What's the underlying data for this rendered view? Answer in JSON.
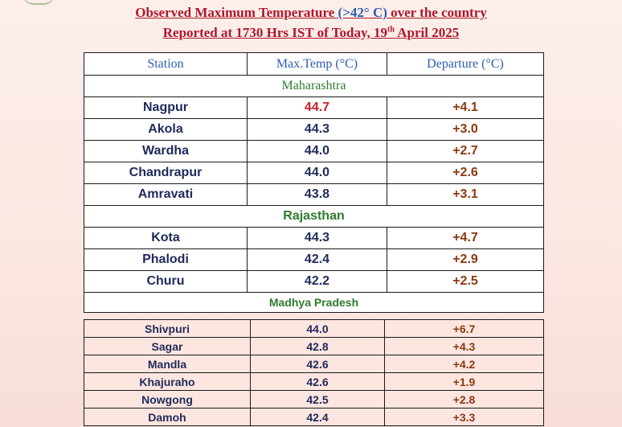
{
  "title_line1": {
    "pre": "Observed Maximum Temperature ",
    "blue": "(>42° C)",
    "post": " over the country"
  },
  "title_line2": {
    "pre": "Reported at 1730 Hrs IST of Today, 19",
    "sup": "th",
    "post": " April 2025"
  },
  "headers": {
    "station": "Station",
    "max_temp": "Max.Temp (°C)",
    "departure": "Departure (°C)"
  },
  "maharashtra": {
    "name": "Maharashtra",
    "rows": [
      {
        "station": "Nagpur",
        "max": "44.7",
        "dep": "+4.1"
      },
      {
        "station": "Akola",
        "max": "44.3",
        "dep": "+3.0"
      },
      {
        "station": "Wardha",
        "max": "44.0",
        "dep": "+2.7"
      },
      {
        "station": "Chandrapur",
        "max": "44.0",
        "dep": "+2.6"
      },
      {
        "station": "Amravati",
        "max": "43.8",
        "dep": "+3.1"
      }
    ]
  },
  "rajasthan": {
    "name": "Rajasthan",
    "rows": [
      {
        "station": "Kota",
        "max": "44.3",
        "dep": "+4.7"
      },
      {
        "station": "Phalodi",
        "max": "42.4",
        "dep": "+2.9"
      },
      {
        "station": "Churu",
        "max": "42.2",
        "dep": "+2.5"
      }
    ]
  },
  "madhya_pradesh": {
    "name": "Madhya Pradesh",
    "rows": [
      {
        "station": "Shivpuri",
        "max": "44.0",
        "dep": "+6.7"
      },
      {
        "station": "Sagar",
        "max": "42.8",
        "dep": "+4.3"
      },
      {
        "station": "Mandla",
        "max": "42.6",
        "dep": "+4.2"
      },
      {
        "station": "Khajuraho",
        "max": "42.6",
        "dep": "+1.9"
      },
      {
        "station": "Nowgong",
        "max": "42.5",
        "dep": "+2.8"
      },
      {
        "station": "Damoh",
        "max": "42.4",
        "dep": "+3.3"
      }
    ]
  },
  "colors": {
    "title_red": "#b0162a",
    "header_blue": "#2c5db0",
    "state_green": "#2d7a2d",
    "hot_red": "#c8202a"
  }
}
